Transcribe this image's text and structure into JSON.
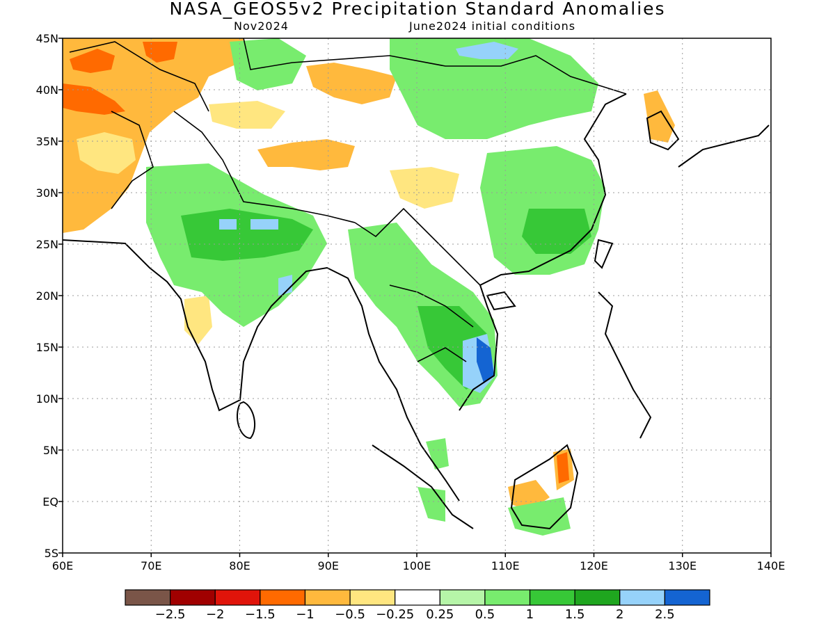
{
  "title": "NASA_GEOS5v2 Precipitation Standard Anomalies",
  "subtitle_left": "Nov2024",
  "subtitle_right": "June2024 initial conditions",
  "lat_labels": [
    "45N",
    "40N",
    "35N",
    "30N",
    "25N",
    "20N",
    "15N",
    "10N",
    "5N",
    "EQ",
    "5S"
  ],
  "lon_labels": [
    "60E",
    "70E",
    "80E",
    "90E",
    "100E",
    "110E",
    "120E",
    "130E",
    "140E"
  ],
  "colorbar": {
    "colors": [
      "#7a5548",
      "#a00000",
      "#e0140a",
      "#ff6a00",
      "#ffb93d",
      "#ffe680",
      "#ffffff",
      "#b6f5a8",
      "#78ec6e",
      "#37c837",
      "#1fa61f",
      "#96d2fa",
      "#1464d2"
    ],
    "labels": [
      "−2.5",
      "−2",
      "−1.5",
      "−1",
      "−0.5",
      "−0.25",
      "0.25",
      "0.5",
      "1",
      "1.5",
      "2",
      "2.5"
    ]
  },
  "map_extent": {
    "lon_min": 60,
    "lon_max": 140,
    "lat_min": -5,
    "lat_max": 45
  }
}
